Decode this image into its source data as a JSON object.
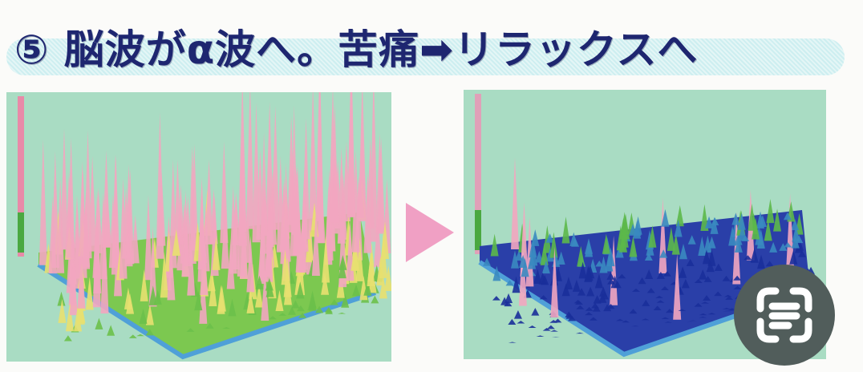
{
  "header": {
    "title": "⑤ 脳波がα波へ。苦痛➡リラックスへ"
  },
  "charts": {
    "before": {
      "description_colors": {
        "high": "#f2a6c0",
        "mid": "#6cc04a",
        "low": "#e8e070"
      }
    },
    "after": {
      "description_colors": {
        "high": "#f2a6c0",
        "mid": "#5cb84a",
        "low": "#1a2f9a"
      }
    }
  },
  "colors": {
    "title": "#1e2670",
    "band": "#d6f1f2",
    "chart_bg": "#a9dcc3",
    "arrow": "#f0a0c4",
    "lens_button": "#515d5b"
  },
  "icons": {
    "arrow": "triangle-right-icon",
    "lens": "google-lens-icon"
  }
}
